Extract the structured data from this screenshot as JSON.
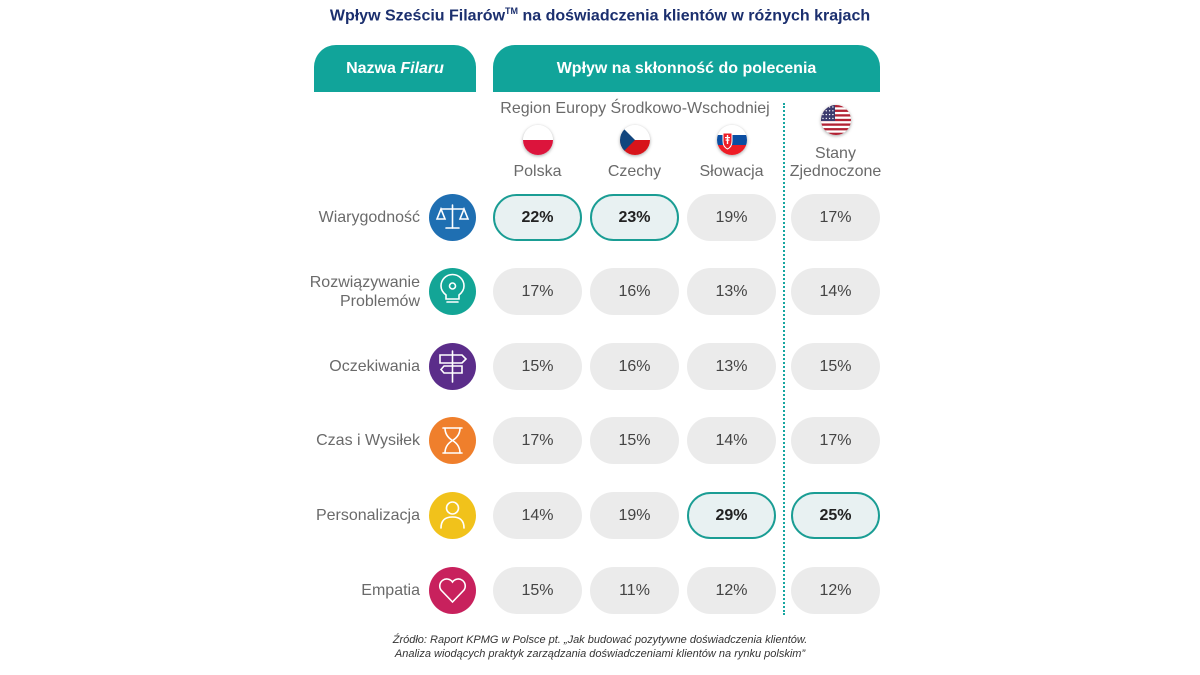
{
  "title_prefix": "Wpływ Sześciu Filarów",
  "title_sup": "TM",
  "title_suffix": " na doświadczenia klientów w różnych krajach",
  "header_left_prefix": "Nazwa ",
  "header_left_italic": "Filaru",
  "header_right": "Wpływ na skłonność do polecenia",
  "region_label": "Region Europy Środkowo-Wschodniej",
  "source_line1": "Źródło: Raport KPMG w Polsce pt. „Jak budować pozytywne doświadczenia klientów.",
  "source_line2": "Analiza wiodących praktyk zarządzania doświadczeniami klientów na rynku polskim”",
  "colors": {
    "accent": "#11a49a",
    "title": "#1b2f6e",
    "cell_bg": "#ebebeb",
    "highlight_border": "#1a9d94"
  },
  "chart_data": {
    "type": "table",
    "countries": [
      {
        "name": "Polska",
        "line2": "",
        "flag": "poland-flag-icon"
      },
      {
        "name": "Czechy",
        "line2": "",
        "flag": "czech-flag-icon"
      },
      {
        "name": "Słowacja",
        "line2": "",
        "flag": "slovakia-flag-icon"
      },
      {
        "name": "Stany",
        "line2": "Zjednoczone",
        "flag": "usa-flag-icon"
      }
    ],
    "pillars": [
      {
        "name_line1": "Wiarygodność",
        "name_line2": "",
        "icon": "scales-icon",
        "icon_color": "#1f6fb2",
        "values": [
          "22%",
          "23%",
          "19%",
          "17%"
        ],
        "highlight": [
          true,
          true,
          false,
          false
        ]
      },
      {
        "name_line1": "Rozwiązywanie",
        "name_line2": "Problemów",
        "icon": "lightbulb-icon",
        "icon_color": "#13a596",
        "values": [
          "17%",
          "16%",
          "13%",
          "14%"
        ],
        "highlight": [
          false,
          false,
          false,
          false
        ]
      },
      {
        "name_line1": "Oczekiwania",
        "name_line2": "",
        "icon": "expectation-signpost-icon",
        "icon_color": "#5b2d8a",
        "values": [
          "15%",
          "16%",
          "13%",
          "15%"
        ],
        "highlight": [
          false,
          false,
          false,
          false
        ]
      },
      {
        "name_line1": "Czas i Wysiłek",
        "name_line2": "",
        "icon": "hourglass-icon",
        "icon_color": "#ef7f2c",
        "values": [
          "17%",
          "15%",
          "14%",
          "17%"
        ],
        "highlight": [
          false,
          false,
          false,
          false
        ]
      },
      {
        "name_line1": "Personalizacja",
        "name_line2": "",
        "icon": "person-icon",
        "icon_color": "#f1c21b",
        "values": [
          "14%",
          "19%",
          "29%",
          "25%"
        ],
        "highlight": [
          false,
          false,
          true,
          true
        ]
      },
      {
        "name_line1": "Empatia",
        "name_line2": "",
        "icon": "heart-icon",
        "icon_color": "#c8215d",
        "values": [
          "15%",
          "11%",
          "12%",
          "12%"
        ],
        "highlight": [
          false,
          false,
          false,
          false
        ]
      }
    ]
  }
}
